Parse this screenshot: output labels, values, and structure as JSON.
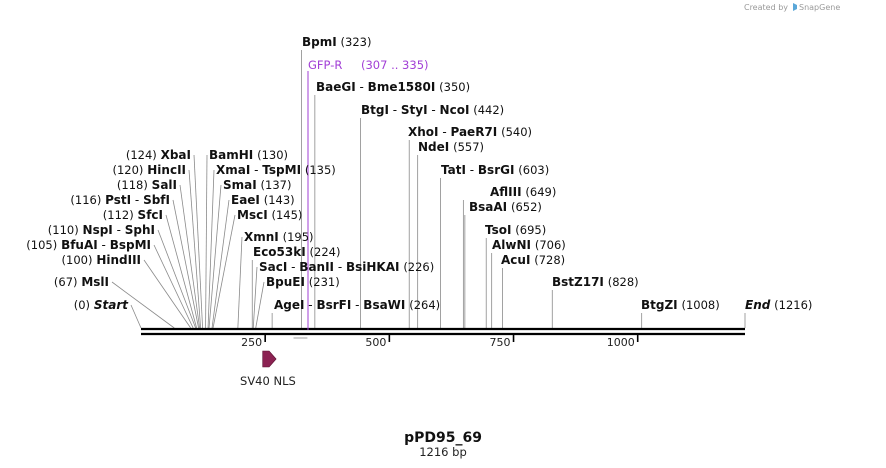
{
  "credit": {
    "text": "Created by",
    "brand": "SnapGene"
  },
  "map": {
    "name": "pPD95_69",
    "length_label": "1216 bp",
    "length": 1216
  },
  "colors": {
    "primer": "#a23fd6",
    "feature": "#8b2252",
    "backbone": "#000000"
  },
  "ticks": [
    {
      "label": "250",
      "value": 250
    },
    {
      "label": "500",
      "value": 500
    },
    {
      "label": "750",
      "value": 750
    },
    {
      "label": "1000",
      "value": 1000
    }
  ],
  "primer": {
    "name": "GFP-R",
    "range_label": "(307 .. 335)",
    "start": 307,
    "end": 335
  },
  "feature": {
    "name": "SV40 NLS",
    "start": 245,
    "end": 266
  },
  "sites": [
    {
      "left": [
        "BpmI"
      ],
      "num": "(323)",
      "pos": 323
    },
    {
      "left": [
        "BaeGI",
        "Bme1580I"
      ],
      "num": "(350)",
      "pos": 350
    },
    {
      "left": [
        "BtgI",
        "StyI",
        "NcoI"
      ],
      "num": "(442)",
      "pos": 442
    },
    {
      "left": [
        "XhoI",
        "PaeR7I"
      ],
      "num": "(540)",
      "pos": 540
    },
    {
      "left": [
        "NdeI"
      ],
      "num": "(557)",
      "pos": 557
    },
    {
      "left": [
        "TatI",
        "BsrGI"
      ],
      "num": "(603)",
      "pos": 603
    },
    {
      "left": [
        "AflIII"
      ],
      "num": "(649)",
      "pos": 649
    },
    {
      "left": [
        "BsaAI"
      ],
      "num": "(652)",
      "pos": 652
    },
    {
      "left": [
        "TsoI"
      ],
      "num": "(695)",
      "pos": 695
    },
    {
      "left": [
        "AlwNI"
      ],
      "num": "(706)",
      "pos": 706
    },
    {
      "left": [
        "AcuI"
      ],
      "num": "(728)",
      "pos": 728
    },
    {
      "left": [
        "BstZ17I"
      ],
      "num": "(828)",
      "pos": 828
    },
    {
      "left": [
        "BtgZI"
      ],
      "num": "(1008)",
      "pos": 1008
    },
    {
      "left": [
        "XbaI"
      ],
      "num": "(124)",
      "pos": 124,
      "numFirst": true
    },
    {
      "left": [
        "BamHI"
      ],
      "num": "(130)",
      "pos": 130
    },
    {
      "left": [
        "HincII"
      ],
      "num": "(120)",
      "pos": 120,
      "numFirst": true
    },
    {
      "left": [
        "XmaI",
        "TspMI"
      ],
      "num": "(135)",
      "pos": 135
    },
    {
      "left": [
        "SalI"
      ],
      "num": "(118)",
      "pos": 118,
      "numFirst": true
    },
    {
      "left": [
        "SmaI"
      ],
      "num": "(137)",
      "pos": 137
    },
    {
      "left": [
        "PstI",
        "SbfI"
      ],
      "num": "(116)",
      "pos": 116,
      "numFirst": true
    },
    {
      "left": [
        "EaeI"
      ],
      "num": "(143)",
      "pos": 143
    },
    {
      "left": [
        "SfcI"
      ],
      "num": "(112)",
      "pos": 112,
      "numFirst": true
    },
    {
      "left": [
        "MscI"
      ],
      "num": "(145)",
      "pos": 145
    },
    {
      "left": [
        "NspI",
        "SphI"
      ],
      "num": "(110)",
      "pos": 110,
      "numFirst": true
    },
    {
      "left": [
        "XmnI"
      ],
      "num": "(195)",
      "pos": 195
    },
    {
      "left": [
        "BfuAI",
        "BspMI"
      ],
      "num": "(105)",
      "pos": 105,
      "numFirst": true
    },
    {
      "left": [
        "Eco53kI"
      ],
      "num": "(224)",
      "pos": 224
    },
    {
      "left": [
        "HindIII"
      ],
      "num": "(100)",
      "pos": 100,
      "numFirst": true
    },
    {
      "left": [
        "SacI",
        "BanII",
        "BsiHKAI"
      ],
      "num": "(226)",
      "pos": 226
    },
    {
      "left": [
        "MslI"
      ],
      "num": "(67)",
      "pos": 67,
      "numFirst": true
    },
    {
      "left": [
        "BpuEI"
      ],
      "num": "(231)",
      "pos": 231
    },
    {
      "left": [
        "Start"
      ],
      "num": "(0)",
      "pos": 0,
      "numFirst": true,
      "italic": true
    },
    {
      "left": [
        "AgeI",
        "BsrFI",
        "BsaWI"
      ],
      "num": "(264)",
      "pos": 264
    },
    {
      "left": [
        "End"
      ],
      "num": "(1216)",
      "pos": 1216,
      "italic": true
    }
  ]
}
